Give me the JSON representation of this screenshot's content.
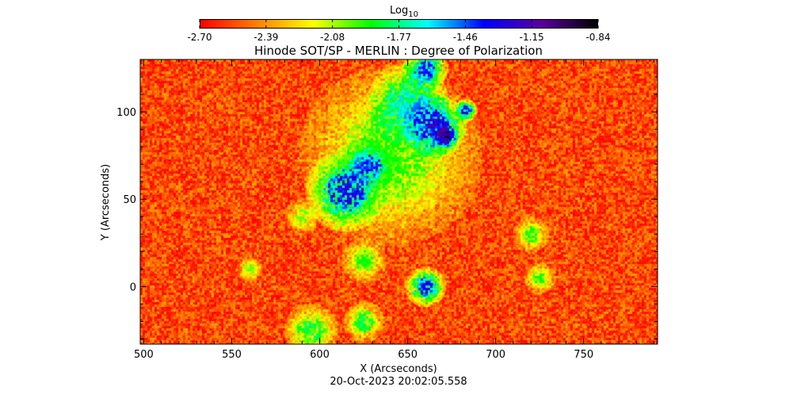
{
  "chart_data": {
    "type": "heatmap",
    "title": "Hinode SOT/SP - MERLIN : Degree of Polarization",
    "xlabel": "X (Arcseconds)",
    "ylabel": "Y (Arcseconds)",
    "footer": "20-Oct-2023 20:02:05.558",
    "xlim": [
      498,
      792
    ],
    "ylim": [
      -33,
      130
    ],
    "xticks": [
      "500",
      "550",
      "600",
      "650",
      "700",
      "750"
    ],
    "yticks": [
      "0",
      "50",
      "100"
    ],
    "colorbar": {
      "label": "Log",
      "label_sub": "10",
      "range": [
        -2.7,
        -0.84
      ],
      "ticks": [
        "-2.70",
        "-2.39",
        "-2.08",
        "-1.77",
        "-1.46",
        "-1.15",
        "-0.84"
      ],
      "colormap": [
        "#ff0000",
        "#ff8000",
        "#ffff00",
        "#00ff00",
        "#00ffff",
        "#0000ff",
        "#5a00a0",
        "#000000"
      ]
    },
    "background_level": -2.55,
    "features": [
      {
        "x": 615,
        "y": 55,
        "r": 18,
        "value": -1.25
      },
      {
        "x": 628,
        "y": 70,
        "r": 12,
        "value": -1.35
      },
      {
        "x": 640,
        "y": 75,
        "r": 40,
        "value": -1.9
      },
      {
        "x": 650,
        "y": 105,
        "r": 18,
        "value": -1.6
      },
      {
        "x": 665,
        "y": 92,
        "r": 14,
        "value": -1.2
      },
      {
        "x": 672,
        "y": 86,
        "r": 5,
        "value": -0.9
      },
      {
        "x": 660,
        "y": 125,
        "r": 10,
        "value": -1.35
      },
      {
        "x": 683,
        "y": 101,
        "r": 5,
        "value": -1.2
      },
      {
        "x": 660,
        "y": 0,
        "r": 9,
        "value": -1.3
      },
      {
        "x": 625,
        "y": 15,
        "r": 10,
        "value": -1.9
      },
      {
        "x": 595,
        "y": -25,
        "r": 12,
        "value": -1.8
      },
      {
        "x": 590,
        "y": 40,
        "r": 8,
        "value": -2.0
      },
      {
        "x": 720,
        "y": 30,
        "r": 8,
        "value": -1.9
      },
      {
        "x": 725,
        "y": 5,
        "r": 7,
        "value": -1.9
      },
      {
        "x": 560,
        "y": 10,
        "r": 6,
        "value": -2.0
      },
      {
        "x": 625,
        "y": -20,
        "r": 9,
        "value": -1.8
      }
    ]
  }
}
